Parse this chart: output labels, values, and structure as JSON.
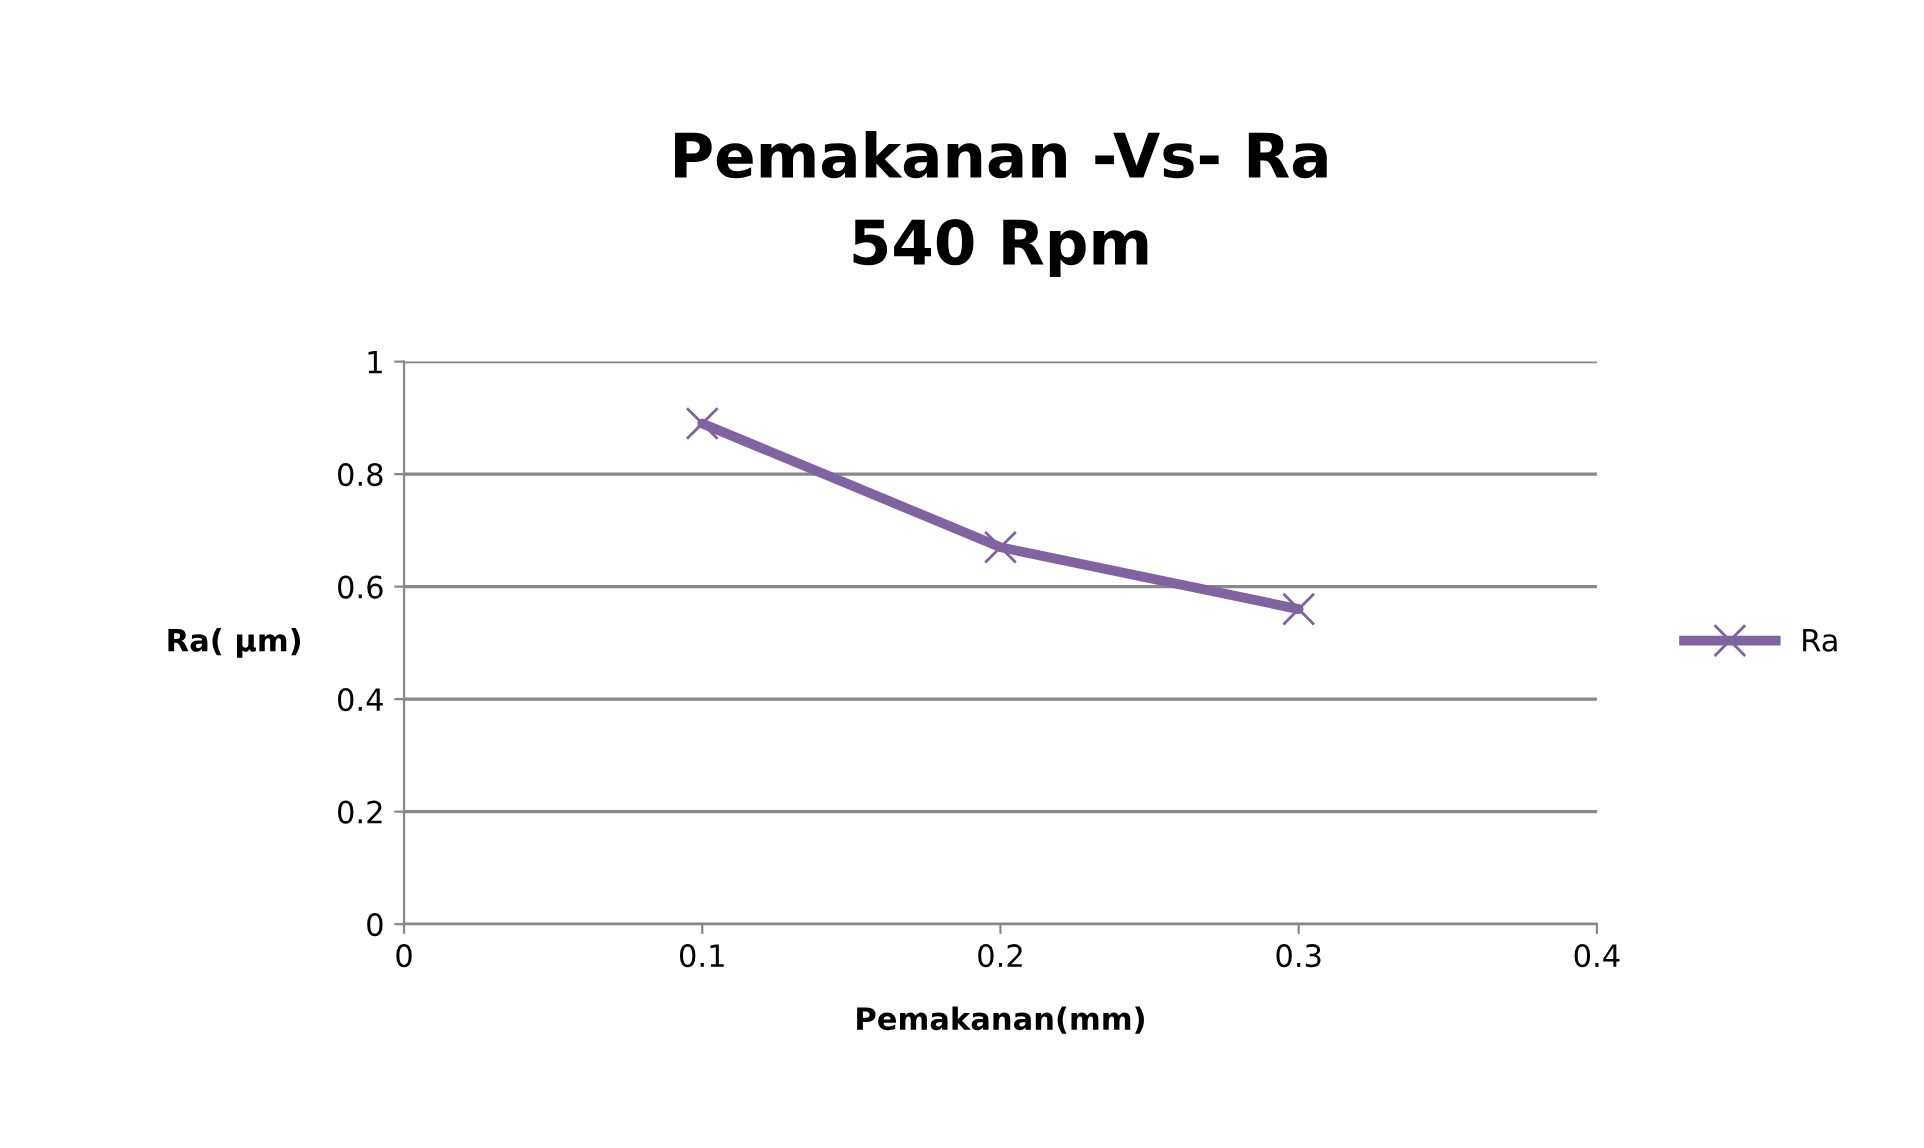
{
  "chart_data": {
    "type": "line",
    "title": "Pemakanan -Vs- Ra\n540 Rpm",
    "xlabel": "Pemakanan(mm)",
    "ylabel": "Ra( µm)",
    "x": [
      0.1,
      0.2,
      0.3
    ],
    "series": [
      {
        "name": "Ra",
        "color": "#8064a2",
        "values": [
          0.89,
          0.67,
          0.56
        ]
      }
    ],
    "xlim": [
      0,
      0.4
    ],
    "xticks": [
      0,
      0.1,
      0.2,
      0.3,
      0.4
    ],
    "ylim": [
      0,
      1
    ],
    "yticks": [
      0,
      0.2,
      0.4,
      0.6,
      0.8,
      1
    ],
    "grid": "y",
    "legend": "right",
    "marker": "cross",
    "line_style": "solid"
  }
}
